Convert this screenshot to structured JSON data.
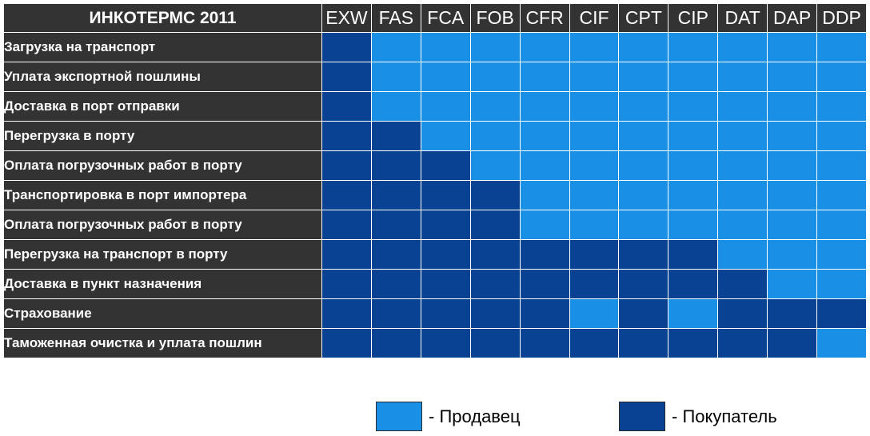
{
  "colors": {
    "seller": "#1a8fe6",
    "buyer": "#0a4293",
    "header_bg": "#333333"
  },
  "chart_data": {
    "type": "heatmap",
    "title": "ИНКОТЕРМС 2011",
    "columns": [
      "EXW",
      "FAS",
      "FCA",
      "FOB",
      "CFR",
      "CIF",
      "CPT",
      "CIP",
      "DAT",
      "DAP",
      "DDP"
    ],
    "rows": [
      "Загрузка на транспорт",
      "Уплата экспортной пошлины",
      "Доставка в порт отправки",
      "Перегрузка в порту",
      "Оплата погрузочных работ в порту",
      "Транспортировка в порт импортера",
      "Оплата погрузочных работ в порту",
      "Перегрузка на транспорт в порту",
      "Доставка в пункт назначения",
      "Страхование",
      "Таможенная очистка и уплата пошлин"
    ],
    "values": [
      [
        "B",
        "S",
        "S",
        "S",
        "S",
        "S",
        "S",
        "S",
        "S",
        "S",
        "S"
      ],
      [
        "B",
        "S",
        "S",
        "S",
        "S",
        "S",
        "S",
        "S",
        "S",
        "S",
        "S"
      ],
      [
        "B",
        "S",
        "S",
        "S",
        "S",
        "S",
        "S",
        "S",
        "S",
        "S",
        "S"
      ],
      [
        "B",
        "B",
        "S",
        "S",
        "S",
        "S",
        "S",
        "S",
        "S",
        "S",
        "S"
      ],
      [
        "B",
        "B",
        "B",
        "S",
        "S",
        "S",
        "S",
        "S",
        "S",
        "S",
        "S"
      ],
      [
        "B",
        "B",
        "B",
        "B",
        "S",
        "S",
        "S",
        "S",
        "S",
        "S",
        "S"
      ],
      [
        "B",
        "B",
        "B",
        "B",
        "S",
        "S",
        "S",
        "S",
        "S",
        "S",
        "S"
      ],
      [
        "B",
        "B",
        "B",
        "B",
        "B",
        "B",
        "B",
        "B",
        "S",
        "S",
        "S"
      ],
      [
        "B",
        "B",
        "B",
        "B",
        "B",
        "B",
        "B",
        "B",
        "B",
        "S",
        "S"
      ],
      [
        "B",
        "B",
        "B",
        "B",
        "B",
        "S",
        "B",
        "S",
        "B",
        "B",
        "B"
      ],
      [
        "B",
        "B",
        "B",
        "B",
        "B",
        "B",
        "B",
        "B",
        "B",
        "B",
        "S"
      ]
    ],
    "legend": [
      {
        "key": "S",
        "label": "- Продавец"
      },
      {
        "key": "B",
        "label": "- Покупатель"
      }
    ],
    "legend_position": "bottom"
  }
}
